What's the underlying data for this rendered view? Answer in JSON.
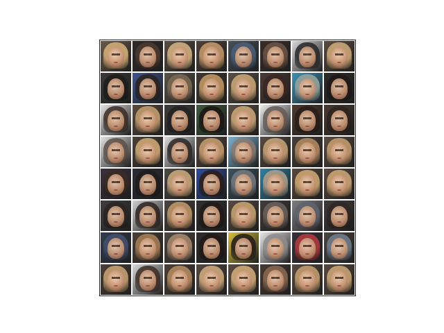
{
  "figure": {
    "grid_rows": 8,
    "grid_columns": 8,
    "tile_count": 64,
    "colors": {
      "background": "#ffffff",
      "frame": "#222222"
    },
    "tiles": [
      {
        "bg": "#6b5a4a",
        "hair": "#d9b27a"
      },
      {
        "bg": "#2f2a28",
        "hair": "#4c3a30"
      },
      {
        "bg": "#5a4d43",
        "hair": "#d7b684"
      },
      {
        "bg": "#4d4038",
        "hair": "#c89c6a"
      },
      {
        "bg": "#48505a",
        "hair": "#4c5e78"
      },
      {
        "bg": "#3b2d2a",
        "hair": "#6d5547"
      },
      {
        "bg": "#d8d8d8",
        "hair": "#272727"
      },
      {
        "bg": "#5b4b40",
        "hair": "#d1ad7a"
      },
      {
        "bg": "#3a3a38",
        "hair": "#1f1c1b"
      },
      {
        "bg": "#40548f",
        "hair": "#2a221d"
      },
      {
        "bg": "#5b5448",
        "hair": "#7b6a54"
      },
      {
        "bg": "#3f3731",
        "hair": "#c79c65"
      },
      {
        "bg": "#5a5047",
        "hair": "#cdab78"
      },
      {
        "bg": "#4d3b35",
        "hair": "#392722"
      },
      {
        "bg": "#3f93b5",
        "hair": "#9aa6a0"
      },
      {
        "bg": "#2e2c29",
        "hair": "#1f1918"
      },
      {
        "bg": "#e5e5e5",
        "hair": "#3b2b25"
      },
      {
        "bg": "#5a4b3e",
        "hair": "#c8a071"
      },
      {
        "bg": "#3f3d3b",
        "hair": "#222222"
      },
      {
        "bg": "#3d5a3e",
        "hair": "#1b1412"
      },
      {
        "bg": "#5b4f45",
        "hair": "#cfaa79"
      },
      {
        "bg": "#ededed",
        "hair": "#655a55"
      },
      {
        "bg": "#4d3a2d",
        "hair": "#2a1d18"
      },
      {
        "bg": "#4b3b31",
        "hair": "#2d221d"
      },
      {
        "bg": "#e3e3e3",
        "hair": "#5d5049"
      },
      {
        "bg": "#4d4138",
        "hair": "#d5ad75"
      },
      {
        "bg": "#dcdcdc",
        "hair": "#2a2625"
      },
      {
        "bg": "#56473e",
        "hair": "#c8a06f"
      },
      {
        "bg": "#7ab3d4",
        "hair": "#8a7a70"
      },
      {
        "bg": "#574b42",
        "hair": "#caa77a"
      },
      {
        "bg": "#4a3f39",
        "hair": "#b48d62"
      },
      {
        "bg": "#5b4c42",
        "hair": "#c8a070"
      },
      {
        "bg": "#3d3040",
        "hair": "#3b2a22"
      },
      {
        "bg": "#2d2d34",
        "hair": "#1e1c1d"
      },
      {
        "bg": "#4e4a44",
        "hair": "#cfac7f"
      },
      {
        "bg": "#2d4d9c",
        "hair": "#2a1c17"
      },
      {
        "bg": "#3d5361",
        "hair": "#777a80"
      },
      {
        "bg": "#2f84a6",
        "hair": "#b2a08b"
      },
      {
        "bg": "#58493e",
        "hair": "#d2ab73"
      },
      {
        "bg": "#5a4b41",
        "hair": "#d0aa78"
      },
      {
        "bg": "#403d3d",
        "hair": "#2b2522"
      },
      {
        "bg": "#cfcfcf",
        "hair": "#2c2220"
      },
      {
        "bg": "#4b453f",
        "hair": "#c49a6a"
      },
      {
        "bg": "#302f2f",
        "hair": "#211918"
      },
      {
        "bg": "#5a4b43",
        "hair": "#cba674"
      },
      {
        "bg": "#413d3a",
        "hair": "#6d625c"
      },
      {
        "bg": "#7f7f81",
        "hair": "#5f6470"
      },
      {
        "bg": "#3f3c3b",
        "hair": "#2f2724"
      },
      {
        "bg": "#343c50",
        "hair": "#43506d"
      },
      {
        "bg": "#4b3f36",
        "hair": "#a98058"
      },
      {
        "bg": "#4f4842",
        "hair": "#a98a70"
      },
      {
        "bg": "#2f2c2b",
        "hair": "#1f1917"
      },
      {
        "bg": "#d8c13f",
        "hair": "#221918"
      },
      {
        "bg": "#e6e6e6",
        "hair": "#8c8c8c"
      },
      {
        "bg": "#373039",
        "hair": "#b43a3f"
      },
      {
        "bg": "#4a4741",
        "hair": "#71808f"
      },
      {
        "bg": "#4d4038",
        "hair": "#cca675"
      },
      {
        "bg": "#d8d8d8",
        "hair": "#3c2c24"
      },
      {
        "bg": "#4f4036",
        "hair": "#b78d62"
      },
      {
        "bg": "#554a41",
        "hair": "#d3ae7f"
      },
      {
        "bg": "#5b4c42",
        "hair": "#d7b07b"
      },
      {
        "bg": "#483a32",
        "hair": "#8c6a52"
      },
      {
        "bg": "#574a3f",
        "hair": "#c8a171"
      },
      {
        "bg": "#594a40",
        "hair": "#cea978"
      }
    ]
  }
}
